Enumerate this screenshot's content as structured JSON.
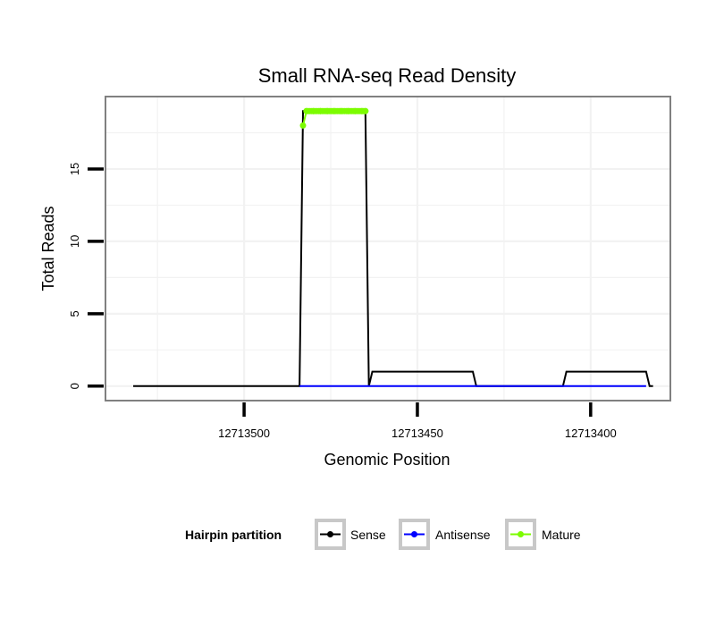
{
  "chart_data": {
    "type": "line",
    "title": "Small RNA-seq Read Density",
    "xlabel": "Genomic Position",
    "ylabel": "Total Reads",
    "x_reversed": true,
    "xlim": [
      12713377,
      12713540
    ],
    "ylim": [
      -1,
      20
    ],
    "x_ticks": [
      12713500,
      12713450,
      12713400
    ],
    "x_tick_labels": [
      "12713500",
      "12713450",
      "12713400"
    ],
    "y_ticks": [
      0,
      5,
      10,
      15
    ],
    "y_tick_labels": [
      "0",
      "5",
      "10",
      "15"
    ],
    "grid": true,
    "legend": {
      "title": "Hairpin partition",
      "placement": "bottom",
      "entries": [
        {
          "label": "Sense",
          "color": "#000000"
        },
        {
          "label": "Antisense",
          "color": "#0000ff"
        },
        {
          "label": "Mature",
          "color": "#7cfc00"
        }
      ]
    },
    "series": [
      {
        "name": "Sense",
        "color": "#000000",
        "x": [
          12713532,
          12713484,
          12713483,
          12713465,
          12713464,
          12713463,
          12713434,
          12713433,
          12713408,
          12713407,
          12713384,
          12713383,
          12713382
        ],
        "y": [
          0,
          0,
          19,
          19,
          0,
          1,
          1,
          0,
          0,
          1,
          1,
          0,
          0
        ]
      },
      {
        "name": "Antisense",
        "color": "#0000ff",
        "x": [
          12713484,
          12713433,
          12713407,
          12713384
        ],
        "y": [
          0,
          0,
          0,
          0
        ]
      },
      {
        "name": "Mature",
        "color": "#7cfc00",
        "x": [
          12713483,
          12713482,
          12713480,
          12713478,
          12713476,
          12713474,
          12713472,
          12713470,
          12713468,
          12713466,
          12713465
        ],
        "y": [
          18,
          19,
          19,
          19,
          19,
          19,
          19,
          19,
          19,
          19,
          19
        ]
      }
    ]
  }
}
